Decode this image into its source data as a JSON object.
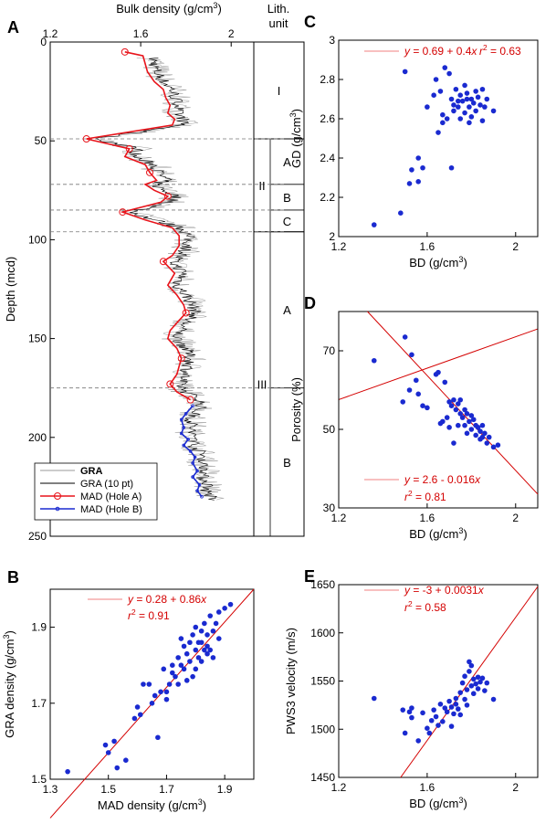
{
  "colors": {
    "red": "#e8141b",
    "blue": "#1a2ad0",
    "black": "#000000",
    "gray": "#9a9a9a",
    "eq_red": "#d40000"
  },
  "chart_data": [
    {
      "panel": "A",
      "type": "line",
      "xlabel": "Bulk density (g/cm3)",
      "ylabel": "Depth (mcd)",
      "xlim": [
        1.2,
        2.1
      ],
      "ylim": [
        250,
        0
      ],
      "xticks": [
        "1.2",
        "1.6",
        "2"
      ],
      "yticks": [
        "0",
        "50",
        "100",
        "150",
        "200",
        "250"
      ],
      "lith_header": "Lith. unit",
      "units": [
        {
          "label": "I",
          "top": 0,
          "bottom": 49
        },
        {
          "label": "II",
          "top": 49,
          "bottom": 96
        },
        {
          "label": "III",
          "top": 96,
          "bottom": 250
        }
      ],
      "subunits": [
        {
          "label": "A",
          "top": 49,
          "bottom": 72
        },
        {
          "label": "B",
          "top": 72,
          "bottom": 85
        },
        {
          "label": "C",
          "top": 85,
          "bottom": 96
        },
        {
          "label": "A",
          "top": 96,
          "bottom": 175
        },
        {
          "label": "B",
          "top": 175,
          "bottom": 250
        }
      ],
      "boundaries": [
        49,
        72,
        85,
        96,
        175
      ],
      "legend": [
        "GRA",
        "GRA (10 pt)",
        "MAD (Hole A)",
        "MAD (Hole B)"
      ],
      "series": [
        {
          "name": "MAD (Hole A)",
          "points": [
            [
              1.53,
              5
            ],
            [
              1.61,
              7
            ],
            [
              1.63,
              15
            ],
            [
              1.66,
              20
            ],
            [
              1.7,
              24
            ],
            [
              1.71,
              28
            ],
            [
              1.73,
              32
            ],
            [
              1.72,
              36
            ],
            [
              1.75,
              39
            ],
            [
              1.74,
              42
            ],
            [
              1.36,
              49
            ],
            [
              1.55,
              54
            ],
            [
              1.53,
              58
            ],
            [
              1.62,
              62
            ],
            [
              1.64,
              66
            ],
            [
              1.67,
              70
            ],
            [
              1.62,
              72
            ],
            [
              1.66,
              75
            ],
            [
              1.72,
              78
            ],
            [
              1.69,
              81
            ],
            [
              1.52,
              86
            ],
            [
              1.62,
              90
            ],
            [
              1.74,
              94
            ],
            [
              1.77,
              98
            ],
            [
              1.77,
              103
            ],
            [
              1.74,
              108
            ],
            [
              1.7,
              111
            ],
            [
              1.75,
              117
            ],
            [
              1.72,
              123
            ],
            [
              1.76,
              128
            ],
            [
              1.79,
              133
            ],
            [
              1.8,
              137
            ],
            [
              1.76,
              142
            ],
            [
              1.73,
              146
            ],
            [
              1.72,
              150
            ],
            [
              1.76,
              155
            ],
            [
              1.78,
              160
            ],
            [
              1.77,
              164
            ],
            [
              1.76,
              168
            ],
            [
              1.73,
              173
            ],
            [
              1.76,
              177
            ],
            [
              1.82,
              181
            ]
          ]
        },
        {
          "name": "MAD (Hole B)",
          "points": [
            [
              1.83,
              184
            ],
            [
              1.8,
              188
            ],
            [
              1.78,
              191
            ],
            [
              1.79,
              195
            ],
            [
              1.78,
              198
            ],
            [
              1.81,
              201
            ],
            [
              1.79,
              204
            ],
            [
              1.82,
              207
            ],
            [
              1.84,
              210
            ],
            [
              1.83,
              213
            ],
            [
              1.85,
              217
            ],
            [
              1.83,
              220
            ],
            [
              1.86,
              224
            ],
            [
              1.85,
              227
            ],
            [
              1.87,
              230
            ]
          ]
        }
      ]
    },
    {
      "panel": "B",
      "type": "scatter",
      "xlabel": "MAD density (g/cm3)",
      "ylabel": "GRA density (g/cm3)",
      "xlim": [
        1.3,
        2.0
      ],
      "ylim": [
        1.5,
        2.0
      ],
      "xticks": [
        "1.3",
        "1.5",
        "1.7",
        "1.9"
      ],
      "yticks": [
        "1.5",
        "1.7",
        "1.9"
      ],
      "fit_intercept": 0.28,
      "fit_slope": 0.86,
      "equation": "y = 0.28 + 0.86x",
      "r2": "r2 = 0.91",
      "points": [
        [
          1.36,
          1.52
        ],
        [
          1.49,
          1.59
        ],
        [
          1.5,
          1.57
        ],
        [
          1.53,
          1.53
        ],
        [
          1.52,
          1.6
        ],
        [
          1.56,
          1.55
        ],
        [
          1.59,
          1.66
        ],
        [
          1.6,
          1.69
        ],
        [
          1.61,
          1.67
        ],
        [
          1.62,
          1.75
        ],
        [
          1.64,
          1.75
        ],
        [
          1.65,
          1.7
        ],
        [
          1.66,
          1.72
        ],
        [
          1.67,
          1.61
        ],
        [
          1.68,
          1.73
        ],
        [
          1.69,
          1.79
        ],
        [
          1.7,
          1.71
        ],
        [
          1.71,
          1.75
        ],
        [
          1.72,
          1.78
        ],
        [
          1.72,
          1.8
        ],
        [
          1.73,
          1.77
        ],
        [
          1.74,
          1.82
        ],
        [
          1.74,
          1.75
        ],
        [
          1.75,
          1.8
        ],
        [
          1.76,
          1.85
        ],
        [
          1.76,
          1.79
        ],
        [
          1.77,
          1.83
        ],
        [
          1.78,
          1.86
        ],
        [
          1.78,
          1.81
        ],
        [
          1.79,
          1.88
        ],
        [
          1.8,
          1.84
        ],
        [
          1.8,
          1.9
        ],
        [
          1.81,
          1.86
        ],
        [
          1.81,
          1.82
        ],
        [
          1.82,
          1.89
        ],
        [
          1.82,
          1.86
        ],
        [
          1.83,
          1.84
        ],
        [
          1.83,
          1.91
        ],
        [
          1.84,
          1.85
        ],
        [
          1.84,
          1.88
        ],
        [
          1.85,
          1.93
        ],
        [
          1.85,
          1.84
        ],
        [
          1.86,
          1.89
        ],
        [
          1.86,
          1.82
        ],
        [
          1.87,
          1.91
        ],
        [
          1.88,
          1.87
        ],
        [
          1.88,
          1.94
        ],
        [
          1.9,
          1.95
        ],
        [
          1.92,
          1.96
        ],
        [
          1.79,
          1.77
        ],
        [
          1.77,
          1.76
        ],
        [
          1.7,
          1.73
        ],
        [
          1.75,
          1.87
        ],
        [
          1.82,
          1.81
        ],
        [
          1.8,
          1.79
        ],
        [
          1.84,
          1.83
        ]
      ]
    },
    {
      "panel": "C",
      "type": "scatter",
      "xlabel": "BD (g/cm3)",
      "ylabel": "GD (g/cm3)",
      "xlim": [
        1.2,
        2.1
      ],
      "ylim": [
        2.0,
        3.0
      ],
      "xticks": [
        "1.2",
        "1.6",
        "2"
      ],
      "yticks": [
        "2",
        "2.2",
        "2.4",
        "2.6",
        "2.8",
        "3"
      ],
      "fit_intercept": 0.69,
      "fit_slope": 0.4,
      "equation": "y = 0.69 + 0.4x",
      "r2": "r2 = 0.63",
      "points": [
        [
          1.36,
          2.06
        ],
        [
          1.48,
          2.12
        ],
        [
          1.5,
          2.84
        ],
        [
          1.52,
          2.27
        ],
        [
          1.53,
          2.34
        ],
        [
          1.56,
          2.4
        ],
        [
          1.56,
          2.28
        ],
        [
          1.58,
          2.35
        ],
        [
          1.6,
          2.66
        ],
        [
          1.63,
          2.72
        ],
        [
          1.64,
          2.8
        ],
        [
          1.65,
          2.53
        ],
        [
          1.66,
          2.74
        ],
        [
          1.67,
          2.62
        ],
        [
          1.67,
          2.58
        ],
        [
          1.68,
          2.86
        ],
        [
          1.69,
          2.6
        ],
        [
          1.7,
          2.83
        ],
        [
          1.71,
          2.35
        ],
        [
          1.71,
          2.7
        ],
        [
          1.72,
          2.64
        ],
        [
          1.73,
          2.75
        ],
        [
          1.74,
          2.66
        ],
        [
          1.75,
          2.72
        ],
        [
          1.75,
          2.6
        ],
        [
          1.76,
          2.69
        ],
        [
          1.77,
          2.77
        ],
        [
          1.77,
          2.63
        ],
        [
          1.78,
          2.73
        ],
        [
          1.79,
          2.66
        ],
        [
          1.8,
          2.7
        ],
        [
          1.8,
          2.61
        ],
        [
          1.81,
          2.68
        ],
        [
          1.82,
          2.74
        ],
        [
          1.82,
          2.64
        ],
        [
          1.83,
          2.71
        ],
        [
          1.84,
          2.67
        ],
        [
          1.85,
          2.59
        ],
        [
          1.85,
          2.75
        ],
        [
          1.86,
          2.66
        ],
        [
          1.87,
          2.7
        ],
        [
          1.9,
          2.64
        ],
        [
          1.79,
          2.58
        ],
        [
          1.78,
          2.7
        ],
        [
          1.72,
          2.67
        ],
        [
          1.74,
          2.69
        ]
      ]
    },
    {
      "panel": "D",
      "type": "scatter",
      "xlabel": "BD (g/cm3)",
      "ylabel": "Porosity (%)",
      "xlim": [
        1.2,
        2.1
      ],
      "ylim": [
        30,
        80
      ],
      "xticks": [
        "1.2",
        "1.6",
        "2"
      ],
      "yticks": [
        "30",
        "50",
        "70"
      ],
      "fit_intercept": 2.6,
      "fit_slope": -0.016,
      "line_from": [
        1.33,
        80
      ],
      "line_to": [
        2.1,
        33.5
      ],
      "equation": "y = 2.6 - 0.016x",
      "r2": "r2 = 0.81",
      "points": [
        [
          1.36,
          67.5
        ],
        [
          1.49,
          57
        ],
        [
          1.5,
          73.5
        ],
        [
          1.52,
          60
        ],
        [
          1.53,
          69
        ],
        [
          1.55,
          62.5
        ],
        [
          1.56,
          59
        ],
        [
          1.58,
          56
        ],
        [
          1.6,
          55.5
        ],
        [
          1.64,
          64
        ],
        [
          1.65,
          64.5
        ],
        [
          1.66,
          51.5
        ],
        [
          1.67,
          52
        ],
        [
          1.68,
          62
        ],
        [
          1.69,
          53
        ],
        [
          1.7,
          57
        ],
        [
          1.71,
          56
        ],
        [
          1.72,
          46.5
        ],
        [
          1.72,
          57.5
        ],
        [
          1.73,
          55
        ],
        [
          1.74,
          56.5
        ],
        [
          1.75,
          54
        ],
        [
          1.75,
          57.5
        ],
        [
          1.76,
          53
        ],
        [
          1.77,
          55
        ],
        [
          1.77,
          51
        ],
        [
          1.78,
          54
        ],
        [
          1.79,
          52
        ],
        [
          1.8,
          53.5
        ],
        [
          1.8,
          50
        ],
        [
          1.81,
          52.5
        ],
        [
          1.82,
          51
        ],
        [
          1.82,
          48.5
        ],
        [
          1.83,
          50.5
        ],
        [
          1.84,
          49.5
        ],
        [
          1.85,
          51
        ],
        [
          1.85,
          48
        ],
        [
          1.86,
          49
        ],
        [
          1.87,
          46.5
        ],
        [
          1.88,
          48
        ],
        [
          1.9,
          45.5
        ],
        [
          1.92,
          46
        ],
        [
          1.78,
          49
        ],
        [
          1.74,
          51
        ],
        [
          1.7,
          50.5
        ],
        [
          1.84,
          47.5
        ]
      ]
    },
    {
      "panel": "E",
      "type": "scatter",
      "xlabel": "BD (g/cm3)",
      "ylabel": "PWS3 velocity (m/s)",
      "xlim": [
        1.2,
        2.1
      ],
      "ylim": [
        1450,
        1650
      ],
      "xticks": [
        "1.2",
        "1.6",
        "2"
      ],
      "yticks": [
        "1450",
        "1500",
        "1550",
        "1600",
        "1650"
      ],
      "fit_intercept": -3,
      "fit_slope": 0.0031,
      "line_from": [
        1.48,
        1450
      ],
      "line_to": [
        2.1,
        1648
      ],
      "equation": "y = -3 + 0.0031x",
      "r2": "r2 = 0.58",
      "points": [
        [
          1.36,
          1532
        ],
        [
          1.49,
          1520
        ],
        [
          1.5,
          1496
        ],
        [
          1.52,
          1518
        ],
        [
          1.53,
          1522
        ],
        [
          1.53,
          1512
        ],
        [
          1.56,
          1488
        ],
        [
          1.58,
          1517
        ],
        [
          1.6,
          1501
        ],
        [
          1.61,
          1496
        ],
        [
          1.62,
          1509
        ],
        [
          1.63,
          1520
        ],
        [
          1.64,
          1513
        ],
        [
          1.65,
          1504
        ],
        [
          1.66,
          1526
        ],
        [
          1.67,
          1508
        ],
        [
          1.68,
          1522
        ],
        [
          1.69,
          1518
        ],
        [
          1.7,
          1529
        ],
        [
          1.71,
          1503
        ],
        [
          1.71,
          1523
        ],
        [
          1.72,
          1516
        ],
        [
          1.73,
          1532
        ],
        [
          1.74,
          1521
        ],
        [
          1.75,
          1538
        ],
        [
          1.75,
          1515
        ],
        [
          1.76,
          1548
        ],
        [
          1.77,
          1531
        ],
        [
          1.77,
          1555
        ],
        [
          1.78,
          1541
        ],
        [
          1.79,
          1560
        ],
        [
          1.79,
          1570
        ],
        [
          1.8,
          1545
        ],
        [
          1.8,
          1566
        ],
        [
          1.81,
          1537
        ],
        [
          1.81,
          1552
        ],
        [
          1.82,
          1547
        ],
        [
          1.83,
          1542
        ],
        [
          1.84,
          1549
        ],
        [
          1.85,
          1553
        ],
        [
          1.86,
          1540
        ],
        [
          1.87,
          1548
        ],
        [
          1.9,
          1531
        ],
        [
          1.78,
          1525
        ],
        [
          1.73,
          1526
        ],
        [
          1.83,
          1554
        ]
      ]
    }
  ]
}
